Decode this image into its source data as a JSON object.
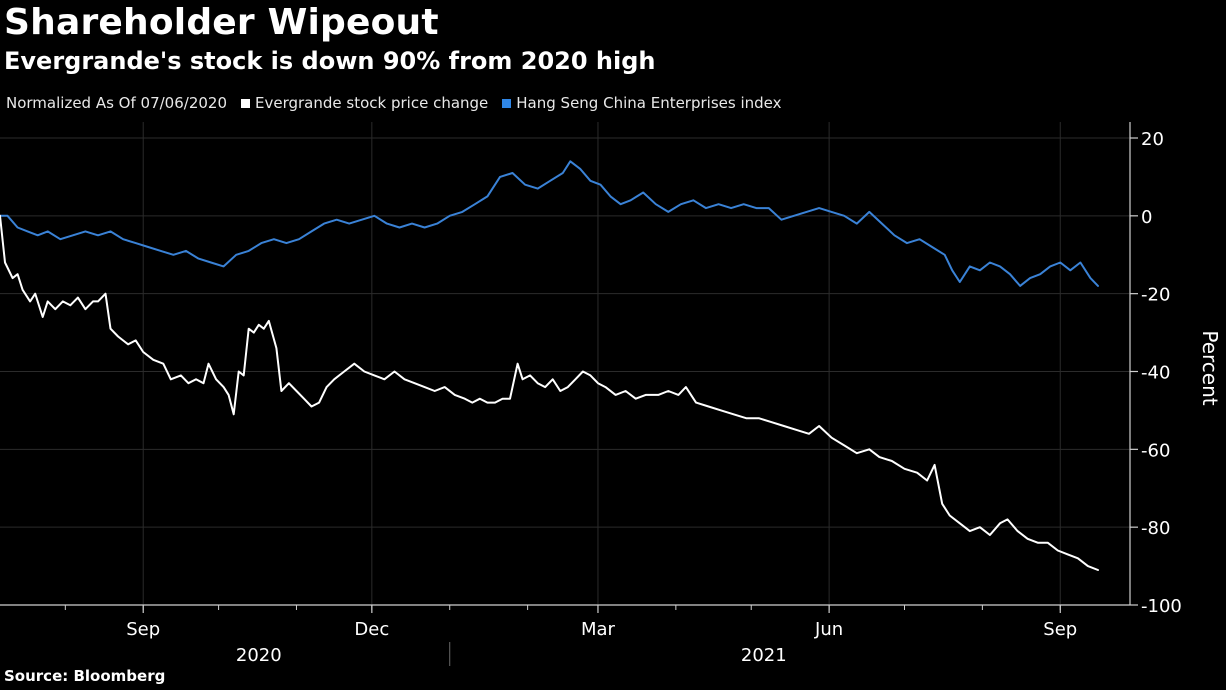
{
  "title": "Shareholder Wipeout",
  "subtitle": "Evergrande's stock is down 90% from 2020 high",
  "source": "Source: Bloomberg",
  "legend": {
    "normalized_label": "Normalized As Of 07/06/2020",
    "items": [
      {
        "label": "Evergrande stock price change",
        "color": "#ffffff"
      },
      {
        "label": "Hang Seng China Enterprises index",
        "color": "#2f86e6"
      }
    ]
  },
  "colors": {
    "background": "#000000",
    "grid": "#2b2b2b",
    "evergrande": "#ffffff",
    "hscei": "#3a82d6",
    "axis": "#cfcfcf"
  },
  "chart_data": {
    "type": "line",
    "title": "Shareholder Wipeout",
    "subtitle": "Evergrande's stock is down 90% from 2020 high",
    "xlabel": "",
    "ylabel": "Percent",
    "ylim": [
      -100,
      20
    ],
    "xlim": [
      "2020-07-06",
      "2021-09-20"
    ],
    "yticks": [
      20,
      0,
      -20,
      -40,
      -60,
      -80,
      -100
    ],
    "yticklabels": [
      "20",
      "0",
      "-20",
      "-40",
      "-60",
      "-80",
      "-100"
    ],
    "xticks": [
      "2020-09-01",
      "2020-12-01",
      "2021-03-01",
      "2021-06-01",
      "2021-09-01"
    ],
    "xticklabels": [
      "Sep",
      "Dec",
      "Mar",
      "Jun",
      "Sep"
    ],
    "year_labels": [
      {
        "label": "2020",
        "center": "2020-10-17"
      },
      {
        "label": "2021",
        "center": "2021-05-06"
      }
    ],
    "year_divider": "2021-01-01",
    "grid": true,
    "series": [
      {
        "name": "Evergrande stock price change",
        "color": "#ffffff",
        "points": [
          [
            "2020-07-06",
            0
          ],
          [
            "2020-07-08",
            -12
          ],
          [
            "2020-07-11",
            -16
          ],
          [
            "2020-07-13",
            -15
          ],
          [
            "2020-07-15",
            -19
          ],
          [
            "2020-07-18",
            -22
          ],
          [
            "2020-07-20",
            -20
          ],
          [
            "2020-07-23",
            -26
          ],
          [
            "2020-07-25",
            -22
          ],
          [
            "2020-07-28",
            -24
          ],
          [
            "2020-07-31",
            -22
          ],
          [
            "2020-08-03",
            -23
          ],
          [
            "2020-08-06",
            -21
          ],
          [
            "2020-08-09",
            -24
          ],
          [
            "2020-08-12",
            -22
          ],
          [
            "2020-08-14",
            -22
          ],
          [
            "2020-08-17",
            -20
          ],
          [
            "2020-08-19",
            -29
          ],
          [
            "2020-08-22",
            -31
          ],
          [
            "2020-08-26",
            -33
          ],
          [
            "2020-08-29",
            -32
          ],
          [
            "2020-09-01",
            -35
          ],
          [
            "2020-09-05",
            -37
          ],
          [
            "2020-09-09",
            -38
          ],
          [
            "2020-09-12",
            -42
          ],
          [
            "2020-09-16",
            -41
          ],
          [
            "2020-09-19",
            -43
          ],
          [
            "2020-09-22",
            -42
          ],
          [
            "2020-09-25",
            -43
          ],
          [
            "2020-09-27",
            -38
          ],
          [
            "2020-09-30",
            -42
          ],
          [
            "2020-10-03",
            -44
          ],
          [
            "2020-10-05",
            -46
          ],
          [
            "2020-10-07",
            -51
          ],
          [
            "2020-10-09",
            -40
          ],
          [
            "2020-10-11",
            -41
          ],
          [
            "2020-10-13",
            -29
          ],
          [
            "2020-10-15",
            -30
          ],
          [
            "2020-10-17",
            -28
          ],
          [
            "2020-10-19",
            -29
          ],
          [
            "2020-10-21",
            -27
          ],
          [
            "2020-10-24",
            -34
          ],
          [
            "2020-10-26",
            -45
          ],
          [
            "2020-10-29",
            -43
          ],
          [
            "2020-11-01",
            -45
          ],
          [
            "2020-11-04",
            -47
          ],
          [
            "2020-11-07",
            -49
          ],
          [
            "2020-11-10",
            -48
          ],
          [
            "2020-11-13",
            -44
          ],
          [
            "2020-11-16",
            -42
          ],
          [
            "2020-11-20",
            -40
          ],
          [
            "2020-11-24",
            -38
          ],
          [
            "2020-11-28",
            -40
          ],
          [
            "2020-12-02",
            -41
          ],
          [
            "2020-12-06",
            -42
          ],
          [
            "2020-12-10",
            -40
          ],
          [
            "2020-12-14",
            -42
          ],
          [
            "2020-12-18",
            -43
          ],
          [
            "2020-12-22",
            -44
          ],
          [
            "2020-12-26",
            -45
          ],
          [
            "2020-12-30",
            -44
          ],
          [
            "2021-01-03",
            -46
          ],
          [
            "2021-01-07",
            -47
          ],
          [
            "2021-01-10",
            -48
          ],
          [
            "2021-01-13",
            -47
          ],
          [
            "2021-01-16",
            -48
          ],
          [
            "2021-01-19",
            -48
          ],
          [
            "2021-01-22",
            -47
          ],
          [
            "2021-01-25",
            -47
          ],
          [
            "2021-01-28",
            -38
          ],
          [
            "2021-01-30",
            -42
          ],
          [
            "2021-02-02",
            -41
          ],
          [
            "2021-02-05",
            -43
          ],
          [
            "2021-02-08",
            -44
          ],
          [
            "2021-02-11",
            -42
          ],
          [
            "2021-02-14",
            -45
          ],
          [
            "2021-02-17",
            -44
          ],
          [
            "2021-02-20",
            -42
          ],
          [
            "2021-02-23",
            -40
          ],
          [
            "2021-02-26",
            -41
          ],
          [
            "2021-03-01",
            -43
          ],
          [
            "2021-03-04",
            -44
          ],
          [
            "2021-03-08",
            -46
          ],
          [
            "2021-03-12",
            -45
          ],
          [
            "2021-03-16",
            -47
          ],
          [
            "2021-03-20",
            -46
          ],
          [
            "2021-03-25",
            -46
          ],
          [
            "2021-03-29",
            -45
          ],
          [
            "2021-04-02",
            -46
          ],
          [
            "2021-04-05",
            -44
          ],
          [
            "2021-04-09",
            -48
          ],
          [
            "2021-04-14",
            -49
          ],
          [
            "2021-04-19",
            -50
          ],
          [
            "2021-04-24",
            -51
          ],
          [
            "2021-04-29",
            -52
          ],
          [
            "2021-05-04",
            -52
          ],
          [
            "2021-05-09",
            -53
          ],
          [
            "2021-05-14",
            -54
          ],
          [
            "2021-05-19",
            -55
          ],
          [
            "2021-05-24",
            -56
          ],
          [
            "2021-05-28",
            -54
          ],
          [
            "2021-06-02",
            -57
          ],
          [
            "2021-06-07",
            -59
          ],
          [
            "2021-06-12",
            -61
          ],
          [
            "2021-06-17",
            -60
          ],
          [
            "2021-06-21",
            -62
          ],
          [
            "2021-06-26",
            -63
          ],
          [
            "2021-07-01",
            -65
          ],
          [
            "2021-07-06",
            -66
          ],
          [
            "2021-07-10",
            -68
          ],
          [
            "2021-07-13",
            -64
          ],
          [
            "2021-07-16",
            -74
          ],
          [
            "2021-07-19",
            -77
          ],
          [
            "2021-07-23",
            -79
          ],
          [
            "2021-07-27",
            -81
          ],
          [
            "2021-07-31",
            -80
          ],
          [
            "2021-08-04",
            -82
          ],
          [
            "2021-08-08",
            -79
          ],
          [
            "2021-08-11",
            -78
          ],
          [
            "2021-08-15",
            -81
          ],
          [
            "2021-08-19",
            -83
          ],
          [
            "2021-08-23",
            -84
          ],
          [
            "2021-08-27",
            -84
          ],
          [
            "2021-08-31",
            -86
          ],
          [
            "2021-09-04",
            -87
          ],
          [
            "2021-09-08",
            -88
          ],
          [
            "2021-09-12",
            -90
          ],
          [
            "2021-09-16",
            -91
          ]
        ]
      },
      {
        "name": "Hang Seng China Enterprises index",
        "color": "#3a82d6",
        "points": [
          [
            "2020-07-06",
            0
          ],
          [
            "2020-07-09",
            0
          ],
          [
            "2020-07-13",
            -3
          ],
          [
            "2020-07-17",
            -4
          ],
          [
            "2020-07-21",
            -5
          ],
          [
            "2020-07-25",
            -4
          ],
          [
            "2020-07-30",
            -6
          ],
          [
            "2020-08-04",
            -5
          ],
          [
            "2020-08-09",
            -4
          ],
          [
            "2020-08-14",
            -5
          ],
          [
            "2020-08-19",
            -4
          ],
          [
            "2020-08-24",
            -6
          ],
          [
            "2020-08-29",
            -7
          ],
          [
            "2020-09-03",
            -8
          ],
          [
            "2020-09-08",
            -9
          ],
          [
            "2020-09-13",
            -10
          ],
          [
            "2020-09-18",
            -9
          ],
          [
            "2020-09-23",
            -11
          ],
          [
            "2020-09-28",
            -12
          ],
          [
            "2020-10-03",
            -13
          ],
          [
            "2020-10-08",
            -10
          ],
          [
            "2020-10-13",
            -9
          ],
          [
            "2020-10-18",
            -7
          ],
          [
            "2020-10-23",
            -6
          ],
          [
            "2020-10-28",
            -7
          ],
          [
            "2020-11-02",
            -6
          ],
          [
            "2020-11-07",
            -4
          ],
          [
            "2020-11-12",
            -2
          ],
          [
            "2020-11-17",
            -1
          ],
          [
            "2020-11-22",
            -2
          ],
          [
            "2020-11-27",
            -1
          ],
          [
            "2020-12-02",
            0
          ],
          [
            "2020-12-07",
            -2
          ],
          [
            "2020-12-12",
            -3
          ],
          [
            "2020-12-17",
            -2
          ],
          [
            "2020-12-22",
            -3
          ],
          [
            "2020-12-27",
            -2
          ],
          [
            "2021-01-01",
            0
          ],
          [
            "2021-01-06",
            1
          ],
          [
            "2021-01-11",
            3
          ],
          [
            "2021-01-16",
            5
          ],
          [
            "2021-01-21",
            10
          ],
          [
            "2021-01-26",
            11
          ],
          [
            "2021-01-31",
            8
          ],
          [
            "2021-02-05",
            7
          ],
          [
            "2021-02-10",
            9
          ],
          [
            "2021-02-15",
            11
          ],
          [
            "2021-02-18",
            14
          ],
          [
            "2021-02-22",
            12
          ],
          [
            "2021-02-26",
            9
          ],
          [
            "2021-03-02",
            8
          ],
          [
            "2021-03-06",
            5
          ],
          [
            "2021-03-10",
            3
          ],
          [
            "2021-03-14",
            4
          ],
          [
            "2021-03-19",
            6
          ],
          [
            "2021-03-24",
            3
          ],
          [
            "2021-03-29",
            1
          ],
          [
            "2021-04-03",
            3
          ],
          [
            "2021-04-08",
            4
          ],
          [
            "2021-04-13",
            2
          ],
          [
            "2021-04-18",
            3
          ],
          [
            "2021-04-23",
            2
          ],
          [
            "2021-04-28",
            3
          ],
          [
            "2021-05-03",
            2
          ],
          [
            "2021-05-08",
            2
          ],
          [
            "2021-05-13",
            -1
          ],
          [
            "2021-05-18",
            0
          ],
          [
            "2021-05-23",
            1
          ],
          [
            "2021-05-28",
            2
          ],
          [
            "2021-06-02",
            1
          ],
          [
            "2021-06-07",
            0
          ],
          [
            "2021-06-12",
            -2
          ],
          [
            "2021-06-17",
            1
          ],
          [
            "2021-06-22",
            -2
          ],
          [
            "2021-06-27",
            -5
          ],
          [
            "2021-07-02",
            -7
          ],
          [
            "2021-07-07",
            -6
          ],
          [
            "2021-07-12",
            -8
          ],
          [
            "2021-07-17",
            -10
          ],
          [
            "2021-07-20",
            -14
          ],
          [
            "2021-07-23",
            -17
          ],
          [
            "2021-07-27",
            -13
          ],
          [
            "2021-07-31",
            -14
          ],
          [
            "2021-08-04",
            -12
          ],
          [
            "2021-08-08",
            -13
          ],
          [
            "2021-08-12",
            -15
          ],
          [
            "2021-08-16",
            -18
          ],
          [
            "2021-08-20",
            -16
          ],
          [
            "2021-08-24",
            -15
          ],
          [
            "2021-08-28",
            -13
          ],
          [
            "2021-09-01",
            -12
          ],
          [
            "2021-09-05",
            -14
          ],
          [
            "2021-09-09",
            -12
          ],
          [
            "2021-09-13",
            -16
          ],
          [
            "2021-09-16",
            -18
          ]
        ]
      }
    ]
  }
}
